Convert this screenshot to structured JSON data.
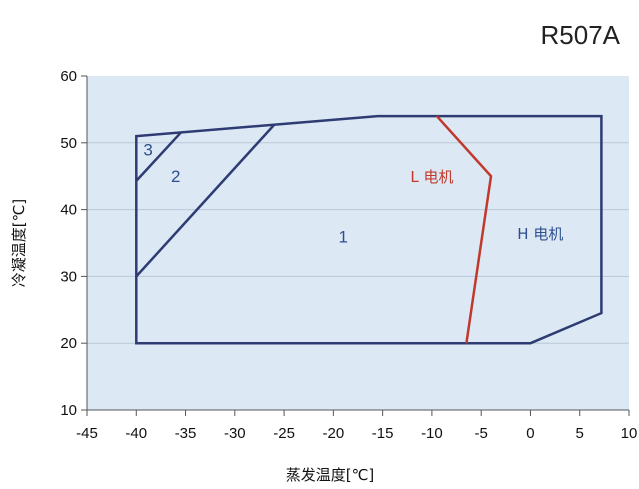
{
  "chart_data": {
    "type": "line",
    "title": "R507A",
    "xlabel": "蒸发温度[℃]",
    "ylabel": "冷凝温度[℃]",
    "xlim": [
      -45,
      10
    ],
    "ylim": [
      10,
      60
    ],
    "xticks": [
      "-45",
      "-40",
      "-35",
      "-30",
      "-25",
      "-20",
      "-15",
      "-10",
      "-5",
      "0",
      "5",
      "10"
    ],
    "yticks": [
      "10",
      "20",
      "30",
      "40",
      "50",
      "60"
    ],
    "grid": "horizontal",
    "background_color": "#dce9f5",
    "series": [
      {
        "name": "",
        "color": "#2e3c73",
        "x": [
          -40,
          -40,
          0,
          7.2,
          7.2,
          -15.5,
          -40,
          -40
        ],
        "y": [
          33,
          20,
          20,
          24.5,
          54,
          54,
          51,
          33
        ]
      },
      {
        "name": "",
        "color": "#2e3c73",
        "x": [
          -40,
          -26
        ],
        "y": [
          30,
          52.7
        ]
      },
      {
        "name": "",
        "color": "#2e3c73",
        "x": [
          -40,
          -35.5
        ],
        "y": [
          44.3,
          51.5
        ]
      },
      {
        "name": "",
        "color": "#c0392b",
        "x": [
          -9.5,
          -4,
          -6.5
        ],
        "y": [
          54,
          45,
          20
        ]
      }
    ],
    "annotations": [
      {
        "text": "1",
        "x": -19,
        "y": 36,
        "color": "#2e4f8f"
      },
      {
        "text": "2",
        "x": -36,
        "y": 45,
        "color": "#2e4f8f"
      },
      {
        "text": "3",
        "x": -38.8,
        "y": 49,
        "color": "#2e4f8f"
      },
      {
        "text": "L 电机",
        "x": -10,
        "y": 45,
        "color": "#c0392b"
      },
      {
        "text": "H 电机",
        "x": 1,
        "y": 36.5,
        "color": "#2e4f8f"
      }
    ]
  }
}
